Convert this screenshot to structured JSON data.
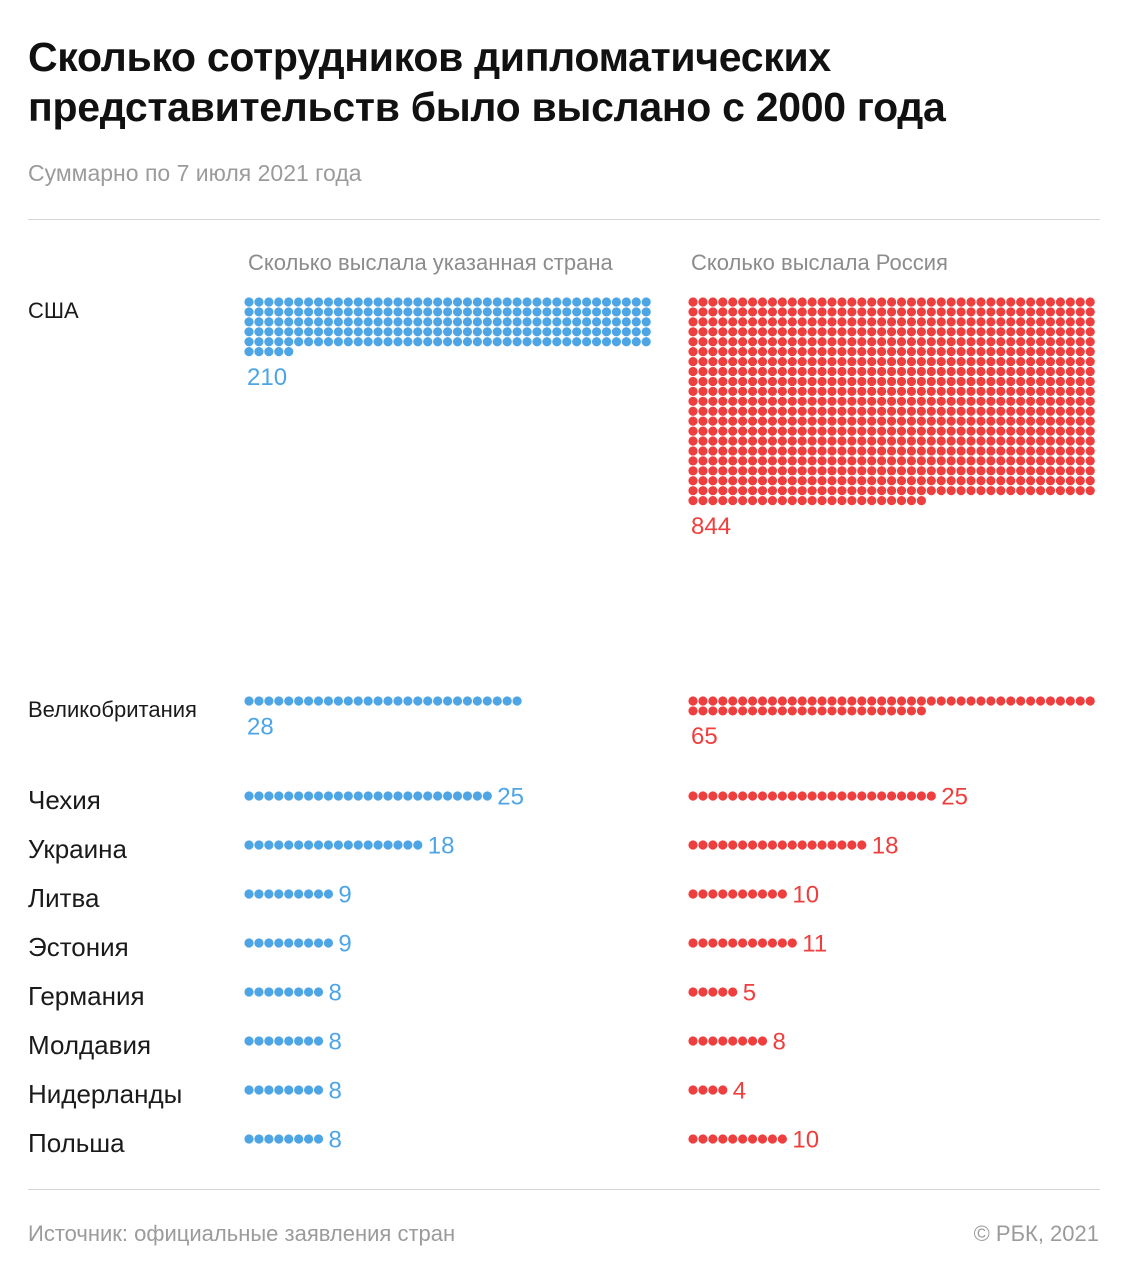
{
  "title": "Сколько сотрудников дипломатических представительств было выслано с 2000 года",
  "subtitle": "Суммарно по 7 июля 2021 года",
  "footer": {
    "source": "Источник: официальные заявления стран",
    "copyright": "© РБК, 2021"
  },
  "colors": {
    "expelled_by_country": "#4ea5e6",
    "expelled_by_russia": "#ef3e3e"
  },
  "chart_data": {
    "type": "dot_matrix",
    "title": "Сколько сотрудников дипломатических представительств было выслано с 2000 года",
    "subtitle": "Суммарно по 7 июля 2021 года",
    "series": [
      {
        "name": "Сколько выслала указанная страна",
        "color": "#4ea5e6"
      },
      {
        "name": "Сколько выслала Россия",
        "color": "#ef3e3e"
      }
    ],
    "categories": [
      "США",
      "Великобритания",
      "Чехия",
      "Украина",
      "Литва",
      "Эстония",
      "Германия",
      "Молдавия",
      "Нидерланды",
      "Польша"
    ],
    "rows": [
      {
        "country": "США",
        "expelled_by_country": 210,
        "expelled_by_russia": 844
      },
      {
        "country": "Великобритания",
        "expelled_by_country": 28,
        "expelled_by_russia": 65
      },
      {
        "country": "Чехия",
        "expelled_by_country": 25,
        "expelled_by_russia": 25
      },
      {
        "country": "Украина",
        "expelled_by_country": 18,
        "expelled_by_russia": 18
      },
      {
        "country": "Литва",
        "expelled_by_country": 9,
        "expelled_by_russia": 10
      },
      {
        "country": "Эстония",
        "expelled_by_country": 9,
        "expelled_by_russia": 11
      },
      {
        "country": "Германия",
        "expelled_by_country": 8,
        "expelled_by_russia": 5
      },
      {
        "country": "Молдавия",
        "expelled_by_country": 8,
        "expelled_by_russia": 8
      },
      {
        "country": "Нидерланды",
        "expelled_by_country": 8,
        "expelled_by_russia": 4
      },
      {
        "country": "Польша",
        "expelled_by_country": 8,
        "expelled_by_russia": 10
      }
    ],
    "grid": false
  }
}
